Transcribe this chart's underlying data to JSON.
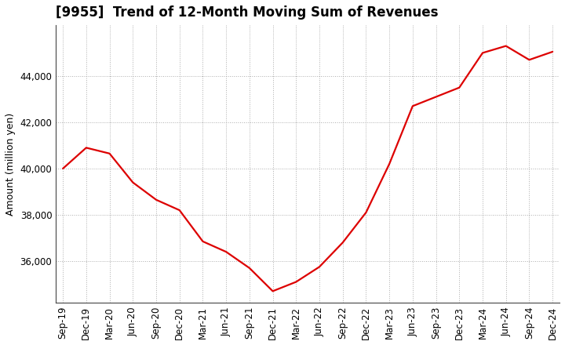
{
  "title": "[9955]  Trend of 12-Month Moving Sum of Revenues",
  "ylabel": "Amount (million yen)",
  "line_color": "#dd0000",
  "background_color": "#ffffff",
  "plot_bg_color": "#ffffff",
  "grid_color": "#999999",
  "x_labels": [
    "Sep-19",
    "Dec-19",
    "Mar-20",
    "Jun-20",
    "Sep-20",
    "Dec-20",
    "Mar-21",
    "Jun-21",
    "Sep-21",
    "Dec-21",
    "Mar-22",
    "Jun-22",
    "Sep-22",
    "Dec-22",
    "Mar-23",
    "Jun-23",
    "Sep-23",
    "Dec-23",
    "Mar-24",
    "Jun-24",
    "Sep-24",
    "Dec-24"
  ],
  "y_values": [
    40000,
    40900,
    40650,
    39400,
    38650,
    38200,
    36850,
    36400,
    35700,
    34700,
    35100,
    35750,
    36800,
    38100,
    40200,
    42700,
    43100,
    43500,
    45000,
    45300,
    44700,
    45050
  ],
  "ylim_min": 34200,
  "ylim_max": 46200,
  "yticks": [
    36000,
    38000,
    40000,
    42000,
    44000
  ],
  "title_fontsize": 12,
  "axis_fontsize": 9,
  "tick_fontsize": 8.5
}
